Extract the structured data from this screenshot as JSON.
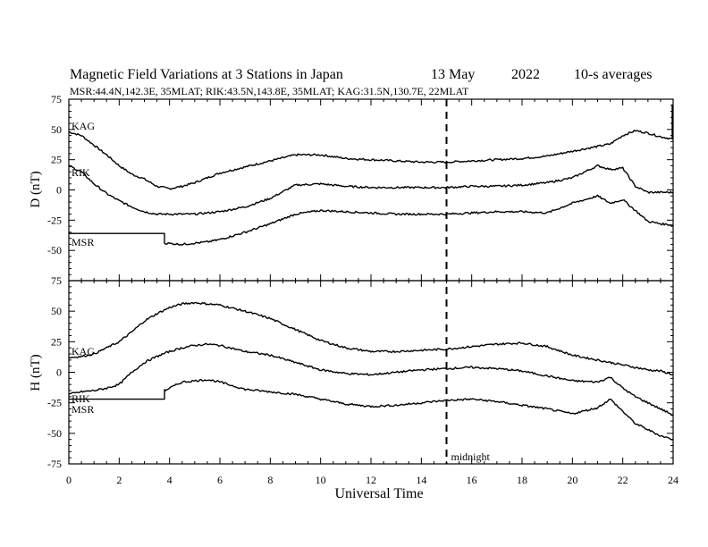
{
  "header": {
    "title": "Magnetic Field Variations at 3 Stations in Japan",
    "date": "13 May",
    "year": "2022",
    "averaging": "10-s averages",
    "stations_line": "MSR:44.4N,142.3E, 35MLAT;  RIK:43.5N,143.8E, 35MLAT;  KAG:31.5N,130.7E, 22MLAT"
  },
  "chart_data": [
    {
      "type": "line",
      "panel": "D",
      "ylabel": "D (nT)",
      "xlabel": "",
      "ylim": [
        -75,
        75
      ],
      "yticks": [
        75,
        50,
        25,
        0,
        -25,
        -50,
        -75
      ],
      "xlim": [
        0,
        24
      ],
      "series": [
        {
          "name": "KAG",
          "x": [
            0,
            0.5,
            1,
            1.5,
            2,
            2.5,
            3,
            3.5,
            4,
            4.5,
            5,
            5.5,
            6,
            7,
            8,
            9,
            10,
            11,
            12,
            13,
            14,
            15,
            16,
            17,
            18,
            19,
            20,
            21,
            21.5,
            22,
            22.5,
            23,
            23.5,
            24
          ],
          "values": [
            48,
            45,
            37,
            29,
            20,
            13,
            9,
            3,
            1,
            3,
            6,
            10,
            14,
            19,
            24,
            29,
            29,
            26,
            25,
            24,
            23,
            23,
            24,
            25,
            26,
            28,
            32,
            36,
            38,
            45,
            49,
            47,
            44,
            42
          ]
        },
        {
          "name": "RIK",
          "x": [
            0,
            0.5,
            1,
            1.5,
            2,
            2.5,
            3,
            3.5,
            4,
            4.5,
            5,
            5.5,
            6,
            7,
            8,
            9,
            10,
            11,
            12,
            13,
            14,
            15,
            16,
            17,
            18,
            19,
            20,
            21,
            21.5,
            22,
            22.5,
            23,
            23.5,
            24
          ],
          "values": [
            20,
            15,
            5,
            -3,
            -9,
            -14,
            -18,
            -20,
            -20,
            -20,
            -20,
            -19,
            -18,
            -14,
            -7,
            4,
            5,
            3,
            2,
            2,
            2,
            2,
            3,
            3,
            4,
            6,
            10,
            20,
            17,
            18,
            3,
            -2,
            -2,
            -2
          ]
        },
        {
          "name": "MSR",
          "x": [
            0,
            3.8,
            3.8,
            4.5,
            5,
            5.5,
            6,
            7,
            8,
            9,
            10,
            11,
            12,
            13,
            14,
            15,
            16,
            17,
            18,
            19,
            20,
            21,
            21.5,
            22,
            22.5,
            23,
            23.5,
            24
          ],
          "values": [
            -36,
            -36,
            -44,
            -45,
            -44,
            -43,
            -41,
            -35,
            -28,
            -20,
            -17,
            -18,
            -19,
            -20,
            -20,
            -20,
            -19,
            -18,
            -18,
            -19,
            -11,
            -5,
            -11,
            -8,
            -17,
            -26,
            -28,
            -29
          ]
        }
      ]
    },
    {
      "type": "line",
      "panel": "H",
      "ylabel": "H (nT)",
      "xlabel": "Universal Time",
      "ylim": [
        -75,
        75
      ],
      "yticks": [
        75,
        50,
        25,
        0,
        -25,
        -50,
        -75
      ],
      "xlim": [
        0,
        24
      ],
      "xticks": [
        0,
        2,
        4,
        6,
        8,
        10,
        12,
        14,
        16,
        18,
        20,
        22,
        24
      ],
      "series": [
        {
          "name": "KAG",
          "x": [
            0,
            0.5,
            1,
            1.5,
            2,
            2.5,
            3,
            3.5,
            4,
            4.5,
            5,
            5.5,
            6,
            7,
            8,
            9,
            10,
            11,
            12,
            13,
            14,
            15,
            16,
            17,
            18,
            19,
            20,
            21,
            21.5,
            22,
            22.5,
            23,
            23.5,
            24
          ],
          "values": [
            12,
            13,
            15,
            20,
            25,
            33,
            42,
            48,
            53,
            56,
            57,
            56,
            55,
            50,
            44,
            35,
            26,
            20,
            17,
            17,
            18,
            19,
            21,
            23,
            24,
            21,
            14,
            10,
            8,
            6,
            4,
            2,
            1,
            -2
          ]
        },
        {
          "name": "RIK",
          "x": [
            0,
            0.5,
            1,
            1.5,
            2,
            2.5,
            3,
            3.5,
            4,
            4.5,
            5,
            5.5,
            6,
            7,
            8,
            9,
            10,
            11,
            12,
            13,
            14,
            15,
            16,
            17,
            18,
            19,
            20,
            21,
            21.5,
            22,
            22.5,
            23,
            23.5,
            24
          ],
          "values": [
            -18,
            -16,
            -15,
            -13,
            -10,
            0,
            8,
            13,
            17,
            20,
            22,
            23,
            22,
            17,
            14,
            8,
            2,
            -1,
            -2,
            0,
            2,
            3,
            4,
            3,
            1,
            -3,
            -7,
            -8,
            -4,
            -13,
            -20,
            -25,
            -30,
            -35
          ]
        },
        {
          "name": "MSR",
          "x": [
            0,
            3.8,
            3.8,
            4.5,
            5,
            5.5,
            6,
            7,
            8,
            9,
            10,
            11,
            12,
            13,
            14,
            15,
            16,
            17,
            18,
            19,
            20,
            21,
            21.5,
            22,
            22.5,
            23,
            23.5,
            24
          ],
          "values": [
            -22,
            -22,
            -15,
            -8,
            -7,
            -6,
            -8,
            -14,
            -16,
            -18,
            -22,
            -26,
            -28,
            -27,
            -25,
            -23,
            -22,
            -24,
            -27,
            -30,
            -34,
            -29,
            -22,
            -32,
            -42,
            -47,
            -52,
            -55
          ]
        }
      ]
    }
  ],
  "xticks": [
    0,
    2,
    4,
    6,
    8,
    10,
    12,
    14,
    16,
    18,
    20,
    22,
    24
  ],
  "annotation": {
    "midnight": "midnight",
    "midnight_ut": 15
  },
  "series_labels": {
    "kag": "KAG",
    "rik": "RIK",
    "msr": "MSR"
  }
}
